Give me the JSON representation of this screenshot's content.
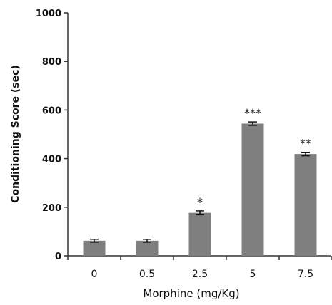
{
  "chart_data": {
    "type": "bar",
    "categories": [
      "0",
      "0.5",
      "2.5",
      "5",
      "7.5"
    ],
    "values": [
      62,
      62,
      177,
      544,
      419
    ],
    "errors": [
      6,
      6,
      8,
      7,
      7
    ],
    "significance": [
      "",
      "",
      "*",
      "***",
      "**"
    ],
    "xlabel": "Morphine (mg/Kg)",
    "ylabel": "Conditioning Score (sec)",
    "ylim": [
      0,
      1000
    ],
    "yticks": [
      0,
      200,
      400,
      600,
      800,
      1000
    ],
    "bar_color": "#7f7f7f",
    "grid": false
  }
}
